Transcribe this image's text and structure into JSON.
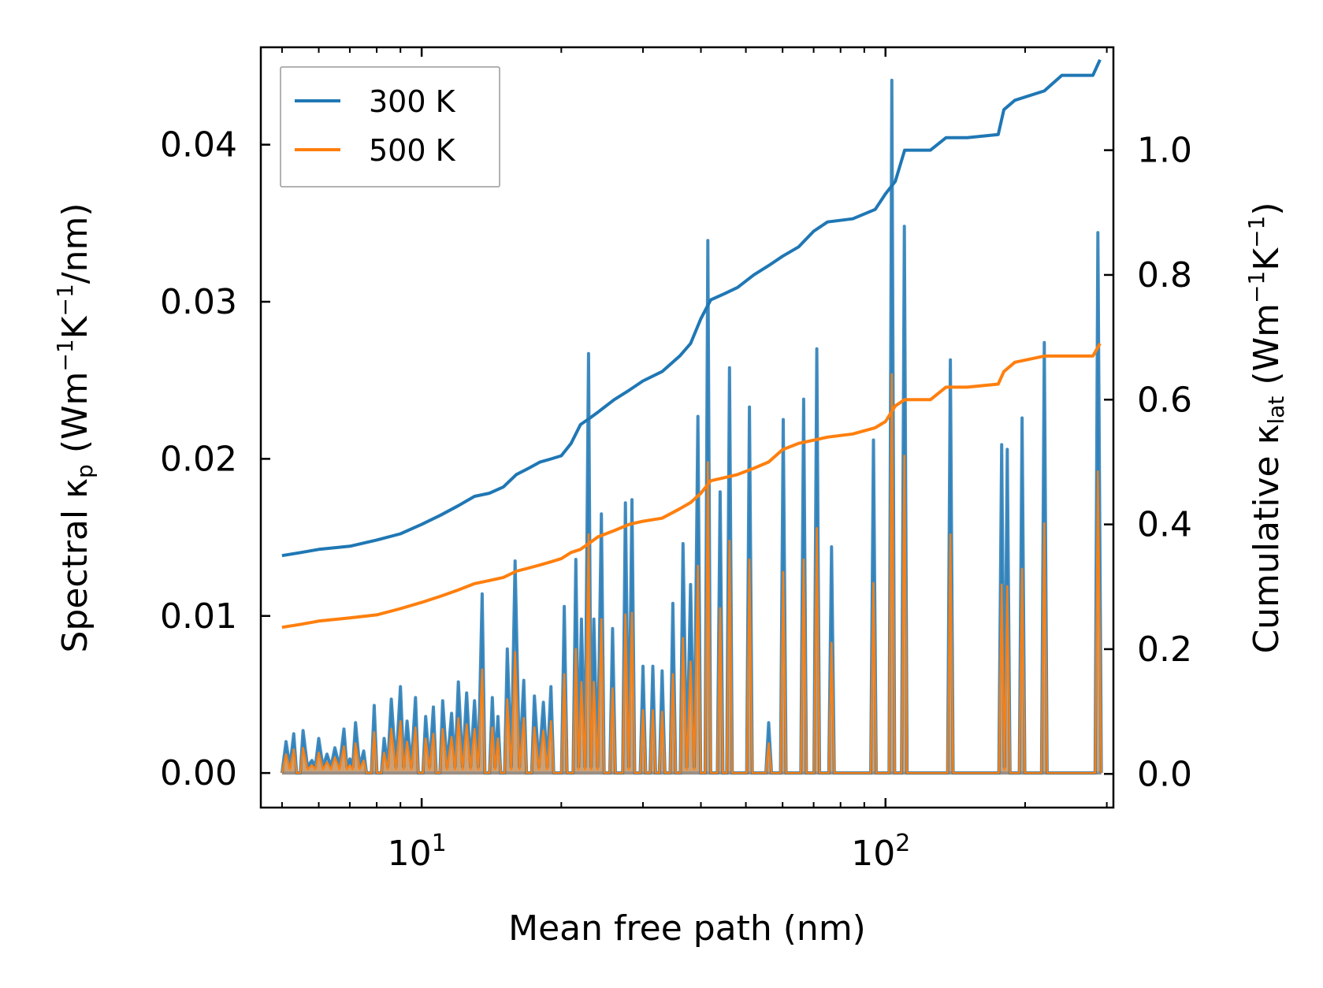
{
  "chart_data": {
    "type": "line",
    "title": "",
    "xlabel": "Mean free path (nm)",
    "ylabel_left": {
      "main": "Spectral κ",
      "sub": "p",
      "units": " (Wm",
      "exp1": "−1",
      "mid": "K",
      "exp2": "−1",
      "tail": "/nm)"
    },
    "ylabel_right": {
      "main": "Cumulative κ",
      "sub": "lat",
      "units": " (Wm",
      "exp1": "−1",
      "mid": "K",
      "exp2": "−1",
      "tail": ")"
    },
    "xscale": "log",
    "xlim": [
      4.5,
      310
    ],
    "ylim_left": [
      -0.0022,
      0.0462
    ],
    "ylim_right": [
      -0.054,
      1.165
    ],
    "x_ticks": [
      {
        "base": "10",
        "exp": "1",
        "value": 10
      },
      {
        "base": "10",
        "exp": "2",
        "value": 100
      }
    ],
    "y_ticks_left": [
      "0.00",
      "0.01",
      "0.02",
      "0.03",
      "0.04"
    ],
    "y_ticks_right": [
      "0.0",
      "0.2",
      "0.4",
      "0.6",
      "0.8",
      "1.0"
    ],
    "legend": {
      "position": "top-left",
      "entries": [
        {
          "label": "300 K",
          "color": "#1f77b4"
        },
        {
          "label": "500 K",
          "color": "#ff7f0e"
        }
      ]
    },
    "colors": {
      "blue": "#1f77b4",
      "orange": "#ff7f0e"
    },
    "cumulative": [
      {
        "name": "300 K",
        "axis": "right",
        "x": [
          5,
          5.5,
          6,
          7,
          8,
          9,
          10,
          11,
          12,
          13,
          14,
          15,
          16,
          17,
          18,
          19,
          20,
          21,
          22,
          23,
          24,
          26,
          28,
          30,
          33,
          36,
          38,
          40,
          42,
          45,
          48,
          52,
          56,
          60,
          65,
          70,
          75,
          85,
          95,
          100,
          105,
          110,
          125,
          135,
          150,
          175,
          180,
          190,
          220,
          240,
          280,
          290
        ],
        "values": [
          0.35,
          0.355,
          0.36,
          0.365,
          0.375,
          0.385,
          0.4,
          0.415,
          0.43,
          0.445,
          0.45,
          0.46,
          0.48,
          0.49,
          0.5,
          0.505,
          0.51,
          0.53,
          0.56,
          0.57,
          0.58,
          0.6,
          0.615,
          0.63,
          0.645,
          0.67,
          0.69,
          0.73,
          0.76,
          0.77,
          0.78,
          0.8,
          0.815,
          0.83,
          0.845,
          0.87,
          0.885,
          0.89,
          0.905,
          0.93,
          0.95,
          1.0,
          1.0,
          1.02,
          1.02,
          1.025,
          1.065,
          1.08,
          1.095,
          1.12,
          1.12,
          1.145
        ]
      },
      {
        "name": "500 K",
        "axis": "right",
        "x": [
          5,
          5.5,
          6,
          7,
          8,
          9,
          10,
          11,
          12,
          13,
          14,
          15,
          16,
          17,
          18,
          19,
          20,
          21,
          22,
          23,
          24,
          26,
          28,
          30,
          33,
          36,
          38,
          40,
          42,
          45,
          48,
          52,
          56,
          60,
          65,
          70,
          75,
          85,
          95,
          100,
          105,
          110,
          125,
          135,
          150,
          175,
          180,
          190,
          220,
          240,
          280,
          290
        ],
        "values": [
          0.235,
          0.24,
          0.245,
          0.25,
          0.255,
          0.265,
          0.275,
          0.285,
          0.295,
          0.305,
          0.31,
          0.315,
          0.325,
          0.33,
          0.335,
          0.34,
          0.345,
          0.355,
          0.36,
          0.37,
          0.38,
          0.39,
          0.4,
          0.405,
          0.41,
          0.425,
          0.435,
          0.45,
          0.47,
          0.475,
          0.48,
          0.49,
          0.5,
          0.52,
          0.53,
          0.535,
          0.54,
          0.545,
          0.555,
          0.565,
          0.59,
          0.6,
          0.6,
          0.62,
          0.62,
          0.625,
          0.645,
          0.66,
          0.67,
          0.67,
          0.67,
          0.69
        ]
      }
    ],
    "spectral": [
      {
        "name": "300 K",
        "axis": "left",
        "peaks": [
          [
            5.1,
            0.002
          ],
          [
            5.3,
            0.0025
          ],
          [
            5.55,
            0.0027
          ],
          [
            5.8,
            0.0008
          ],
          [
            6.0,
            0.0022
          ],
          [
            6.25,
            0.0012
          ],
          [
            6.5,
            0.0016
          ],
          [
            6.8,
            0.0028
          ],
          [
            7.0,
            0.0009
          ],
          [
            7.2,
            0.0032
          ],
          [
            7.5,
            0.0014
          ],
          [
            7.9,
            0.0043
          ],
          [
            8.3,
            0.0022
          ],
          [
            8.6,
            0.0047
          ],
          [
            9.0,
            0.0055
          ],
          [
            9.3,
            0.0033
          ],
          [
            9.7,
            0.0048
          ],
          [
            10.2,
            0.0036
          ],
          [
            10.6,
            0.0042
          ],
          [
            11.1,
            0.0046
          ],
          [
            11.6,
            0.0038
          ],
          [
            12.0,
            0.0058
          ],
          [
            12.5,
            0.0051
          ],
          [
            13.0,
            0.0046
          ],
          [
            13.5,
            0.0114
          ],
          [
            14.2,
            0.0048
          ],
          [
            14.6,
            0.0036
          ],
          [
            15.3,
            0.0079
          ],
          [
            15.9,
            0.0135
          ],
          [
            16.6,
            0.0059
          ],
          [
            17.5,
            0.0049
          ],
          [
            18.3,
            0.0045
          ],
          [
            19.0,
            0.0055
          ],
          [
            20.3,
            0.0106
          ],
          [
            21.5,
            0.0136
          ],
          [
            22.1,
            0.0098
          ],
          [
            22.9,
            0.0267
          ],
          [
            23.5,
            0.0098
          ],
          [
            24.4,
            0.0165
          ],
          [
            25.8,
            0.0092
          ],
          [
            27.5,
            0.0172
          ],
          [
            28.4,
            0.0174
          ],
          [
            30.0,
            0.0068
          ],
          [
            31.5,
            0.0068
          ],
          [
            33.0,
            0.0065
          ],
          [
            34.8,
            0.0108
          ],
          [
            36.6,
            0.0146
          ],
          [
            38.0,
            0.012
          ],
          [
            39.4,
            0.0227
          ],
          [
            41.4,
            0.0339
          ],
          [
            44.0,
            0.0179
          ],
          [
            46.1,
            0.0258
          ],
          [
            50.9,
            0.0233
          ],
          [
            56.0,
            0.0032
          ],
          [
            60.2,
            0.0225
          ],
          [
            66.6,
            0.0238
          ],
          [
            71.1,
            0.027
          ],
          [
            76.5,
            0.0144
          ],
          [
            94.2,
            0.0212
          ],
          [
            103.2,
            0.0441
          ],
          [
            109.8,
            0.0348
          ],
          [
            138.0,
            0.0263
          ],
          [
            178.0,
            0.0209
          ],
          [
            183.0,
            0.0206
          ],
          [
            197.0,
            0.0226
          ],
          [
            220.0,
            0.0274
          ],
          [
            287.0,
            0.0344
          ]
        ]
      },
      {
        "name": "500 K",
        "axis": "left",
        "peaks": [
          [
            5.1,
            0.0012
          ],
          [
            5.3,
            0.0015
          ],
          [
            5.55,
            0.0016
          ],
          [
            5.8,
            0.0005
          ],
          [
            6.0,
            0.0013
          ],
          [
            6.25,
            0.0007
          ],
          [
            6.5,
            0.001
          ],
          [
            6.8,
            0.0017
          ],
          [
            7.0,
            0.0005
          ],
          [
            7.2,
            0.0019
          ],
          [
            7.5,
            0.0008
          ],
          [
            7.9,
            0.0026
          ],
          [
            8.3,
            0.0013
          ],
          [
            8.6,
            0.0028
          ],
          [
            9.0,
            0.0033
          ],
          [
            9.3,
            0.002
          ],
          [
            9.7,
            0.0029
          ],
          [
            10.2,
            0.0022
          ],
          [
            10.6,
            0.0025
          ],
          [
            11.1,
            0.0028
          ],
          [
            11.6,
            0.0023
          ],
          [
            12.0,
            0.0035
          ],
          [
            12.5,
            0.0031
          ],
          [
            13.0,
            0.0028
          ],
          [
            13.5,
            0.0066
          ],
          [
            14.2,
            0.0029
          ],
          [
            14.6,
            0.0022
          ],
          [
            15.3,
            0.0047
          ],
          [
            15.9,
            0.0077
          ],
          [
            16.6,
            0.0035
          ],
          [
            17.5,
            0.0029
          ],
          [
            18.3,
            0.0027
          ],
          [
            19.0,
            0.0033
          ],
          [
            20.3,
            0.0063
          ],
          [
            21.5,
            0.0079
          ],
          [
            22.1,
            0.0058
          ],
          [
            22.9,
            0.0152
          ],
          [
            23.5,
            0.0058
          ],
          [
            24.4,
            0.0098
          ],
          [
            25.8,
            0.0054
          ],
          [
            27.5,
            0.0101
          ],
          [
            28.4,
            0.0102
          ],
          [
            30.0,
            0.004
          ],
          [
            31.5,
            0.004
          ],
          [
            33.0,
            0.0039
          ],
          [
            34.8,
            0.0063
          ],
          [
            36.6,
            0.0086
          ],
          [
            38.0,
            0.0071
          ],
          [
            39.4,
            0.0132
          ],
          [
            41.4,
            0.0198
          ],
          [
            44.0,
            0.0105
          ],
          [
            46.1,
            0.0148
          ],
          [
            50.9,
            0.0136
          ],
          [
            56.0,
            0.0019
          ],
          [
            60.2,
            0.0128
          ],
          [
            66.6,
            0.0136
          ],
          [
            71.1,
            0.0156
          ],
          [
            76.5,
            0.0083
          ],
          [
            94.2,
            0.0121
          ],
          [
            103.2,
            0.0254
          ],
          [
            109.8,
            0.0202
          ],
          [
            138.0,
            0.0152
          ],
          [
            178.0,
            0.012
          ],
          [
            183.0,
            0.0119
          ],
          [
            197.0,
            0.013
          ],
          [
            220.0,
            0.0159
          ],
          [
            287.0,
            0.0192
          ]
        ]
      }
    ]
  }
}
